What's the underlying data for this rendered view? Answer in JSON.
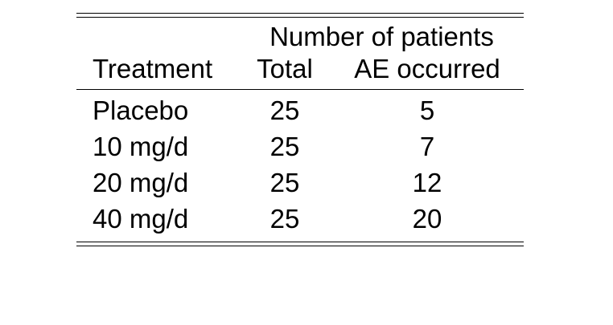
{
  "table": {
    "group_header": "Number of patients",
    "headers": {
      "treatment": "Treatment",
      "total": "Total",
      "ae": "AE occurred"
    },
    "rows": [
      {
        "treatment": "Placebo",
        "total": "25",
        "ae": "5"
      },
      {
        "treatment": "10 mg/d",
        "total": "25",
        "ae": "7"
      },
      {
        "treatment": "20 mg/d",
        "total": "25",
        "ae": "12"
      },
      {
        "treatment": "40 mg/d",
        "total": "25",
        "ae": "20"
      }
    ]
  }
}
